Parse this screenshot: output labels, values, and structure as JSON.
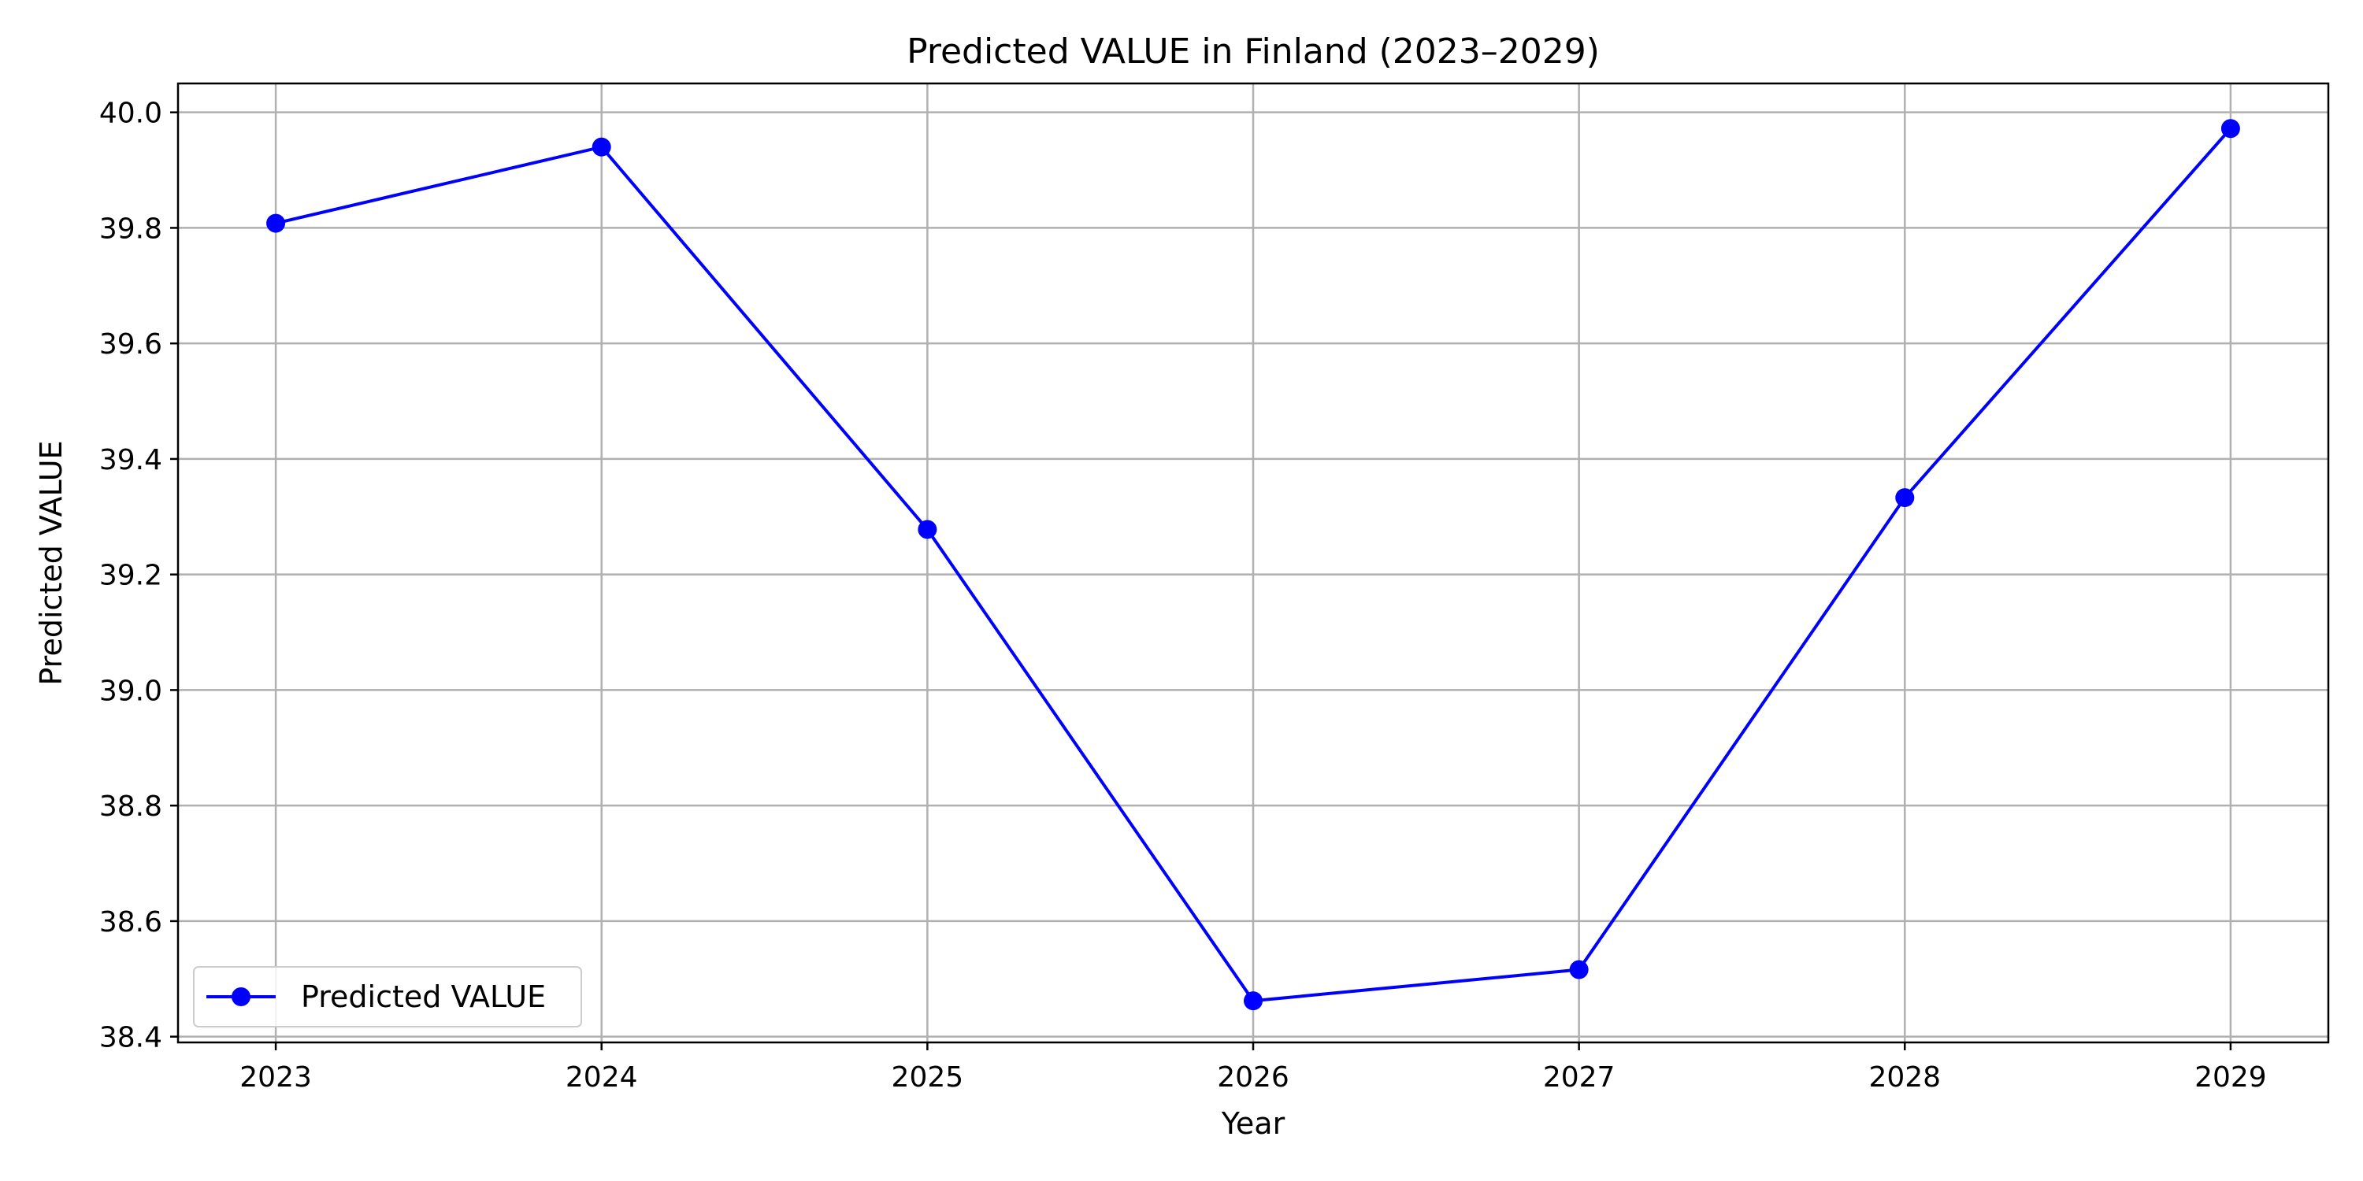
{
  "chart_data": {
    "type": "line",
    "title": "Predicted VALUE in Finland (2023–2029)",
    "xlabel": "Year",
    "ylabel": "Predicted VALUE",
    "x": [
      2023,
      2024,
      2025,
      2026,
      2027,
      2028,
      2029
    ],
    "x_tick_labels": [
      "2023",
      "2024",
      "2025",
      "2026",
      "2027",
      "2028",
      "2029"
    ],
    "xlim": [
      2022.7,
      2029.3
    ],
    "ylim": [
      38.39,
      40.05
    ],
    "y_ticks": [
      38.4,
      38.6,
      38.8,
      39.0,
      39.2,
      39.4,
      39.6,
      39.8,
      40.0
    ],
    "y_tick_labels": [
      "38.4",
      "38.6",
      "38.8",
      "39.0",
      "39.2",
      "39.4",
      "39.6",
      "39.8",
      "40.0"
    ],
    "grid": true,
    "legend_position": "lower-left",
    "series": [
      {
        "name": "Predicted VALUE",
        "color": "#0000ff",
        "marker": "circle",
        "values": [
          39.808,
          39.94,
          39.278,
          38.462,
          38.516,
          39.333,
          39.972
        ]
      }
    ]
  }
}
